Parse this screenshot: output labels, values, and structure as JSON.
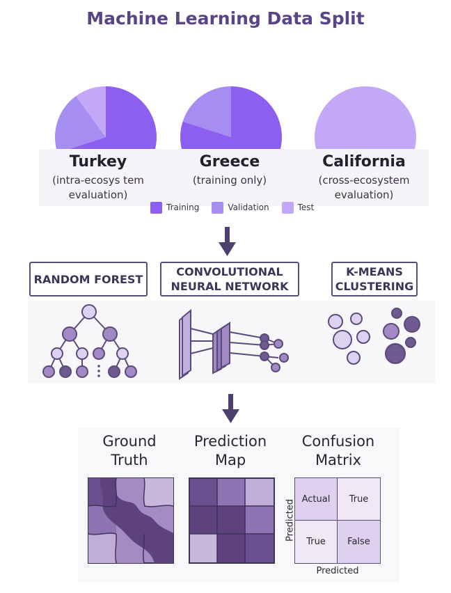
{
  "title": "Machine Learning Data Split",
  "colors": {
    "training": "#8c5ff0",
    "validation": "#a68df2",
    "test": "#c2a8f7",
    "outline": "#5a4a7a",
    "node": "#a289c4"
  },
  "chart_data": [
    {
      "type": "pie",
      "region": "Turkey",
      "labels": [
        "Training",
        "Validation",
        "Test"
      ],
      "values": [
        70,
        20,
        10
      ]
    },
    {
      "type": "pie",
      "region": "Greece",
      "labels": [
        "Training",
        "Validation",
        "Test"
      ],
      "values": [
        80,
        20,
        0
      ]
    },
    {
      "type": "pie",
      "region": "California",
      "labels": [
        "Training",
        "Validation",
        "Test"
      ],
      "values": [
        0,
        0,
        100
      ]
    }
  ],
  "regions": [
    {
      "name": "Turkey",
      "sub1": "(intra-ecosys tem",
      "sub2": "evaluation)"
    },
    {
      "name": "Greece",
      "sub1": "(training only)",
      "sub2": ""
    },
    {
      "name": "California",
      "sub1": "(cross-ecosystem",
      "sub2": "evaluation)"
    }
  ],
  "legend": [
    "Training",
    "Validation",
    "Test"
  ],
  "models": [
    {
      "line1": "RANDOM FOREST",
      "line2": ""
    },
    {
      "line1": "CONVOLUTIONAL",
      "line2": "NEURAL NETWORK"
    },
    {
      "line1": "K-MEANS",
      "line2": "CLUSTERING"
    }
  ],
  "outputs": {
    "ground_truth": {
      "line1": "Ground",
      "line2": "Truth"
    },
    "prediction_map": {
      "line1": "Prediction",
      "line2": "Map"
    },
    "confusion_matrix": {
      "line1": "Confusion",
      "line2": "Matrix"
    }
  },
  "matrix": {
    "cells": [
      "Actual",
      "True",
      "True",
      "False"
    ],
    "ylabel": "Predicted",
    "xlabel": "Predicted"
  }
}
